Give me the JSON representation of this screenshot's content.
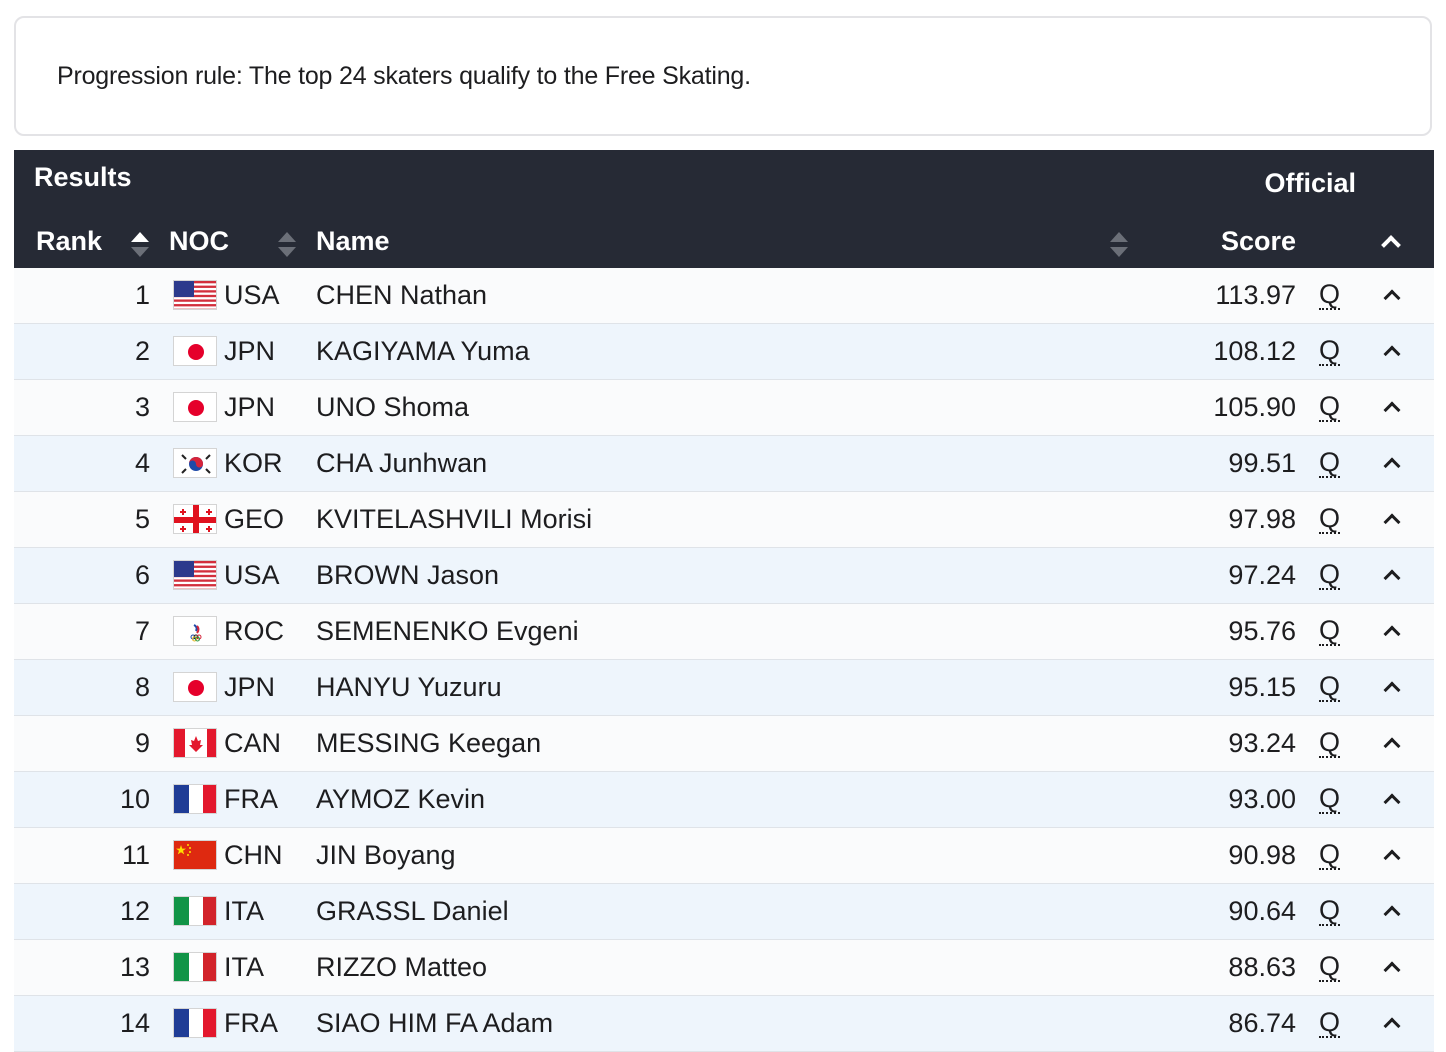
{
  "progression": "Progression rule: The top 24 skaters qualify to the Free Skating.",
  "results": {
    "title": "Results",
    "status": "Official",
    "columns": {
      "rank": "Rank",
      "noc": "NOC",
      "name": "Name",
      "score": "Score"
    }
  },
  "rows": [
    {
      "rank": "1",
      "noc": "USA",
      "name": "CHEN Nathan",
      "score": "113.97",
      "q": "Q",
      "flag": "usa"
    },
    {
      "rank": "2",
      "noc": "JPN",
      "name": "KAGIYAMA Yuma",
      "score": "108.12",
      "q": "Q",
      "flag": "jpn"
    },
    {
      "rank": "3",
      "noc": "JPN",
      "name": "UNO Shoma",
      "score": "105.90",
      "q": "Q",
      "flag": "jpn"
    },
    {
      "rank": "4",
      "noc": "KOR",
      "name": "CHA Junhwan",
      "score": "99.51",
      "q": "Q",
      "flag": "kor"
    },
    {
      "rank": "5",
      "noc": "GEO",
      "name": "KVITELASHVILI Morisi",
      "score": "97.98",
      "q": "Q",
      "flag": "geo"
    },
    {
      "rank": "6",
      "noc": "USA",
      "name": "BROWN Jason",
      "score": "97.24",
      "q": "Q",
      "flag": "usa"
    },
    {
      "rank": "7",
      "noc": "ROC",
      "name": "SEMENENKO Evgeni",
      "score": "95.76",
      "q": "Q",
      "flag": "roc"
    },
    {
      "rank": "8",
      "noc": "JPN",
      "name": "HANYU Yuzuru",
      "score": "95.15",
      "q": "Q",
      "flag": "jpn"
    },
    {
      "rank": "9",
      "noc": "CAN",
      "name": "MESSING Keegan",
      "score": "93.24",
      "q": "Q",
      "flag": "can"
    },
    {
      "rank": "10",
      "noc": "FRA",
      "name": "AYMOZ Kevin",
      "score": "93.00",
      "q": "Q",
      "flag": "fra"
    },
    {
      "rank": "11",
      "noc": "CHN",
      "name": "JIN Boyang",
      "score": "90.98",
      "q": "Q",
      "flag": "chn"
    },
    {
      "rank": "12",
      "noc": "ITA",
      "name": "GRASSL Daniel",
      "score": "90.64",
      "q": "Q",
      "flag": "ita"
    },
    {
      "rank": "13",
      "noc": "ITA",
      "name": "RIZZO Matteo",
      "score": "88.63",
      "q": "Q",
      "flag": "ita"
    },
    {
      "rank": "14",
      "noc": "FRA",
      "name": "SIAO HIM FA Adam",
      "score": "86.74",
      "q": "Q",
      "flag": "fra"
    }
  ]
}
